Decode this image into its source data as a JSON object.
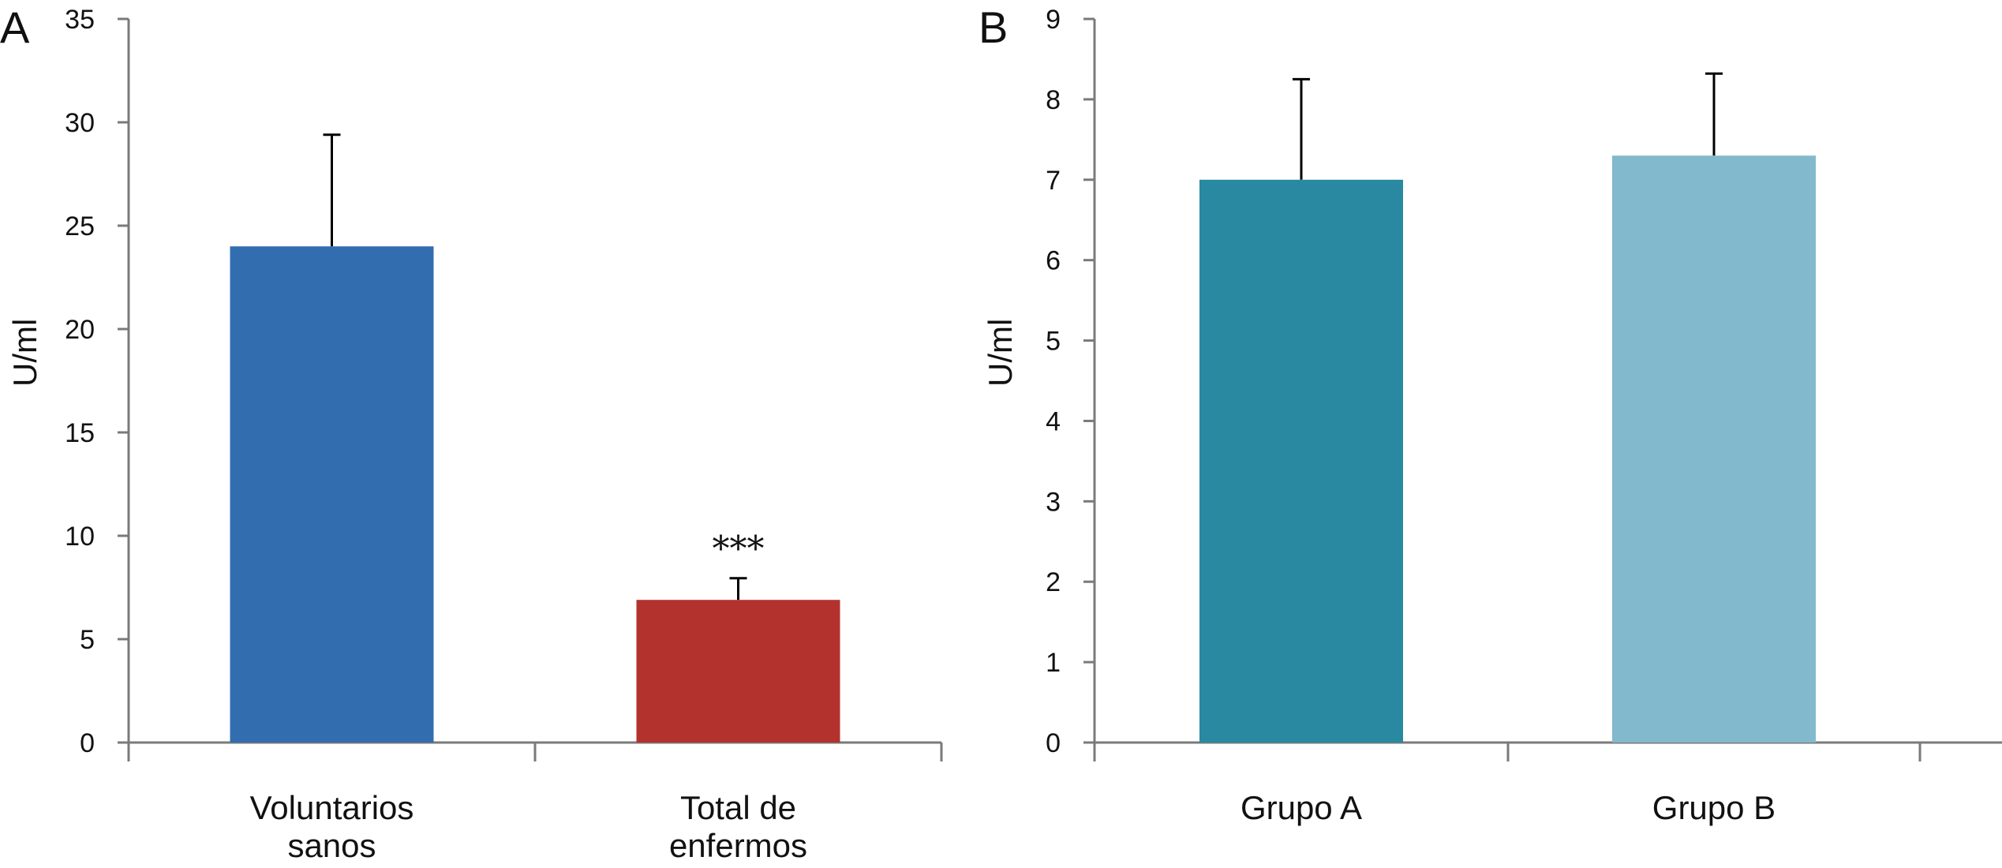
{
  "chart_data": [
    {
      "panel": "A",
      "type": "bar",
      "ylabel": "U/ml",
      "ylim": [
        0,
        35
      ],
      "yticks": [
        "0",
        "5",
        "10",
        "15",
        "20",
        "25",
        "30",
        "35"
      ],
      "categories": [
        [
          "Voluntarios",
          "sanos"
        ],
        [
          "Total de",
          "enfermos"
        ]
      ],
      "values": [
        24,
        6.9
      ],
      "error_upper": [
        29.4,
        7.95
      ],
      "colors": [
        "#326daf",
        "#b3322e"
      ],
      "annotations": [
        "",
        "***"
      ],
      "grid": false
    },
    {
      "panel": "B",
      "type": "bar",
      "ylabel": "U/ml",
      "ylim": [
        0,
        9
      ],
      "yticks": [
        "0",
        "1",
        "2",
        "3",
        "4",
        "5",
        "6",
        "7",
        "8",
        "9"
      ],
      "categories": [
        [
          "Grupo A"
        ],
        [
          "Grupo B"
        ]
      ],
      "values": [
        7.0,
        7.3
      ],
      "error_upper": [
        8.25,
        8.32
      ],
      "colors": [
        "#2889a0",
        "#83b9cc"
      ],
      "annotations": [
        "",
        ""
      ],
      "grid": false
    }
  ]
}
